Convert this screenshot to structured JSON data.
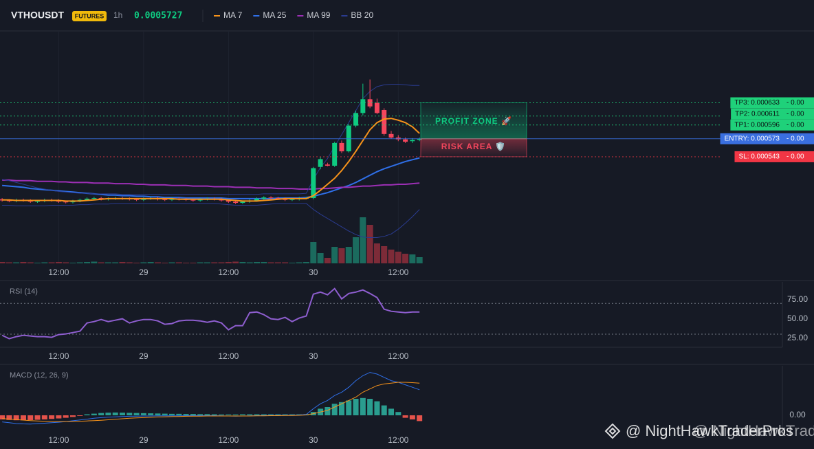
{
  "header": {
    "symbol": "VTHOUSDT",
    "badge": "FUTURES",
    "interval": "1h",
    "price": "0.0005727"
  },
  "watermark": "@ NightHawkTraderPros",
  "chart_data": [
    {
      "type": "candlestick",
      "xlim": [
        -0.3,
        110.3
      ],
      "xticks": [
        {
          "value": 8,
          "label": "12:00"
        },
        {
          "value": 20,
          "label": "29"
        },
        {
          "value": 32,
          "label": "12:00"
        },
        {
          "value": 44,
          "label": "30"
        },
        {
          "value": 56,
          "label": "12:00"
        }
      ],
      "ylim": [
        0.000365,
        0.000753
      ],
      "grid": true,
      "up_color": "#0ecb81",
      "down_color": "#f6465d",
      "volume_up_color": "#1b6b5e",
      "volume_down_color": "#7d2b38",
      "open": [
        0.000472,
        0.00047,
        0.000469,
        0.000471,
        0.00047,
        0.000468,
        0.000469,
        0.000471,
        0.00047,
        0.000468,
        0.000467,
        0.000469,
        0.000471,
        0.000473,
        0.000474,
        0.000472,
        0.000473,
        0.000474,
        0.000473,
        0.000472,
        0.000471,
        0.000473,
        0.000474,
        0.000472,
        0.000471,
        0.000473,
        0.000472,
        0.000471,
        0.00047,
        0.000472,
        0.000473,
        0.000472,
        0.00047,
        0.000468,
        0.000466,
        0.000468,
        0.00047,
        0.000473,
        0.000475,
        0.000474,
        0.000473,
        0.000471,
        0.000472,
        0.000474,
        0.000474,
        0.000526,
        0.00053,
        0.000528,
        0.000566,
        0.000552,
        0.000595,
        0.000616,
        0.000639,
        0.000633,
        0.000621,
        0.000581,
        0.000575,
        0.000572,
        0.000569,
        0.000571
      ],
      "high": [
        0.000474,
        0.000472,
        0.000473,
        0.000473,
        0.000472,
        0.000471,
        0.000473,
        0.000473,
        0.000472,
        0.00047,
        0.000471,
        0.000473,
        0.000475,
        0.000476,
        0.000476,
        0.000475,
        0.000476,
        0.000476,
        0.000475,
        0.000474,
        0.000475,
        0.000476,
        0.000476,
        0.000474,
        0.000475,
        0.000475,
        0.000474,
        0.000473,
        0.000474,
        0.000475,
        0.000475,
        0.000474,
        0.000472,
        0.00047,
        0.00047,
        0.000472,
        0.000475,
        0.000477,
        0.000477,
        0.000476,
        0.000475,
        0.000474,
        0.000476,
        0.000476,
        0.000526,
        0.000543,
        0.000533,
        0.000568,
        0.00057,
        0.000597,
        0.00062,
        0.000665,
        0.000672,
        0.00064,
        0.000624,
        0.000586,
        0.000579,
        0.000575,
        0.000574,
        0.000575
      ],
      "low": [
        0.000468,
        0.000467,
        0.000467,
        0.000468,
        0.000466,
        0.000466,
        0.000467,
        0.000468,
        0.000466,
        0.000465,
        0.000465,
        0.000467,
        0.000469,
        0.000471,
        0.00047,
        0.00047,
        0.000471,
        0.000471,
        0.00047,
        0.000469,
        0.000469,
        0.000471,
        0.00047,
        0.000469,
        0.000469,
        0.00047,
        0.000469,
        0.000468,
        0.000468,
        0.00047,
        0.00047,
        0.000468,
        0.000466,
        0.000464,
        0.000464,
        0.000466,
        0.000468,
        0.000471,
        0.000472,
        0.000471,
        0.000469,
        0.000469,
        0.00047,
        0.000472,
        0.000472,
        0.000522,
        0.000527,
        0.000526,
        0.000549,
        0.00055,
        0.000592,
        0.000612,
        0.000624,
        0.000614,
        0.000578,
        0.000573,
        0.000569,
        0.000566,
        0.000566,
        0.000569
      ],
      "close": [
        0.00047,
        0.000469,
        0.000471,
        0.00047,
        0.000468,
        0.000469,
        0.000471,
        0.00047,
        0.000468,
        0.000467,
        0.000469,
        0.000471,
        0.000473,
        0.000474,
        0.000472,
        0.000473,
        0.000474,
        0.000473,
        0.000472,
        0.000471,
        0.000473,
        0.000474,
        0.000472,
        0.000471,
        0.000473,
        0.000472,
        0.000471,
        0.00047,
        0.000472,
        0.000473,
        0.000472,
        0.00047,
        0.000468,
        0.000466,
        0.000468,
        0.00047,
        0.000473,
        0.000475,
        0.000474,
        0.000473,
        0.000471,
        0.000472,
        0.000474,
        0.000474,
        0.000524,
        0.000539,
        0.000528,
        0.000566,
        0.000552,
        0.000595,
        0.000616,
        0.000639,
        0.000627,
        0.000616,
        0.000581,
        0.000575,
        0.000572,
        0.000568,
        0.000571,
        0.000573
      ],
      "vlim": [
        0,
        100
      ],
      "volume": [
        2,
        1.5,
        1.5,
        2,
        1.5,
        1,
        1.5,
        1.5,
        2,
        1.5,
        1,
        1.5,
        2,
        2.5,
        1.5,
        1.5,
        1.5,
        2,
        1.5,
        1,
        1.5,
        2,
        1.5,
        1,
        1.5,
        1.5,
        1,
        1,
        1.5,
        1.5,
        1.5,
        1.5,
        2,
        2.5,
        2,
        1.5,
        2,
        2,
        1.5,
        1.5,
        1.5,
        1,
        1.5,
        2,
        31,
        15,
        8,
        24,
        22,
        24,
        38,
        67,
        56,
        29,
        25,
        20,
        17,
        14,
        13,
        9
      ],
      "series": [
        {
          "name": "MA 7",
          "color": "#f7931a",
          "values": [
            0.000471,
            0.000471,
            0.00047,
            0.00047,
            0.00047,
            0.00047,
            0.00047,
            0.00047,
            0.00047,
            0.000469,
            0.000469,
            0.000469,
            0.00047,
            0.000471,
            0.000472,
            0.000473,
            0.000473,
            0.000473,
            0.000473,
            0.000473,
            0.000473,
            0.000473,
            0.000473,
            0.000473,
            0.000473,
            0.000472,
            0.000472,
            0.000472,
            0.000472,
            0.000472,
            0.000472,
            0.000472,
            0.000471,
            0.00047,
            0.000469,
            0.000469,
            0.000469,
            0.00047,
            0.000471,
            0.000472,
            0.000473,
            0.000473,
            0.000473,
            0.000473,
            0.000478,
            0.000487,
            0.000497,
            0.000507,
            0.00052,
            0.000535,
            0.000552,
            0.00057,
            0.000588,
            0.0006,
            0.000606,
            0.000607,
            0.000604,
            0.0006,
            0.000593,
            0.000582
          ]
        },
        {
          "name": "MA 25",
          "color": "#2f6fe8",
          "values": [
            0.000495,
            0.000494,
            0.000493,
            0.000492,
            0.00049,
            0.000489,
            0.000488,
            0.000487,
            0.000486,
            0.000485,
            0.000484,
            0.000483,
            0.000482,
            0.000481,
            0.00048,
            0.000479,
            0.000479,
            0.000478,
            0.000478,
            0.000477,
            0.000477,
            0.000476,
            0.000476,
            0.000475,
            0.000475,
            0.000475,
            0.000474,
            0.000474,
            0.000474,
            0.000474,
            0.000474,
            0.000474,
            0.000473,
            0.000473,
            0.000473,
            0.000473,
            0.000473,
            0.000473,
            0.000473,
            0.000474,
            0.000474,
            0.000474,
            0.000474,
            0.000475,
            0.000477,
            0.00048,
            0.000483,
            0.000487,
            0.000491,
            0.000495,
            0.0005,
            0.000506,
            0.000512,
            0.000518,
            0.000523,
            0.000527,
            0.000531,
            0.000535,
            0.000538,
            0.000541
          ]
        },
        {
          "name": "MA 99",
          "color": "#9c2fb5",
          "values": [
            0.000504,
            0.000504,
            0.000503,
            0.000503,
            0.000503,
            0.000502,
            0.000502,
            0.000502,
            0.000501,
            0.000501,
            0.0005,
            0.0005,
            0.0005,
            0.000499,
            0.000499,
            0.000499,
            0.000498,
            0.000498,
            0.000498,
            0.000497,
            0.000497,
            0.000496,
            0.000496,
            0.000496,
            0.000495,
            0.000495,
            0.000495,
            0.000494,
            0.000494,
            0.000494,
            0.000493,
            0.000493,
            0.000493,
            0.000492,
            0.000492,
            0.000492,
            0.000491,
            0.000491,
            0.000491,
            0.00049,
            0.00049,
            0.00049,
            0.000489,
            0.000489,
            0.000489,
            0.00049,
            0.00049,
            0.000491,
            0.000492,
            0.000492,
            0.000493,
            0.000494,
            0.000494,
            0.000495,
            0.000496,
            0.000496,
            0.000497,
            0.000497,
            0.000498,
            0.000499
          ]
        },
        {
          "name": "BB 20",
          "color": "#2a3b8f",
          "upper": [
            0.000505,
            0.000503,
            0.0005,
            0.000497,
            0.000494,
            0.000491,
            0.000489,
            0.000487,
            0.000485,
            0.000484,
            0.000483,
            0.000482,
            0.000482,
            0.000481,
            0.000481,
            0.000481,
            0.000481,
            0.00048,
            0.00048,
            0.00048,
            0.00048,
            0.00048,
            0.00048,
            0.00048,
            0.00048,
            0.00048,
            0.00048,
            0.00048,
            0.00048,
            0.00048,
            0.00048,
            0.00048,
            0.00048,
            0.00048,
            0.00048,
            0.00048,
            0.00048,
            0.000481,
            0.000481,
            0.000481,
            0.000481,
            0.000481,
            0.000481,
            0.000482,
            0.000505,
            0.000525,
            0.00054,
            0.00056,
            0.00058,
            0.0006,
            0.00062,
            0.00064,
            0.000652,
            0.00066,
            0.000663,
            0.000664,
            0.000664,
            0.000663,
            0.000662,
            0.000662
          ],
          "lower": [
            0.000462,
            0.000462,
            0.000461,
            0.000461,
            0.000461,
            0.000461,
            0.000461,
            0.000462,
            0.000462,
            0.000462,
            0.000462,
            0.000463,
            0.000463,
            0.000464,
            0.000464,
            0.000464,
            0.000465,
            0.000465,
            0.000465,
            0.000465,
            0.000465,
            0.000465,
            0.000465,
            0.000465,
            0.000465,
            0.000465,
            0.000465,
            0.000465,
            0.000465,
            0.000465,
            0.000465,
            0.000464,
            0.000463,
            0.000462,
            0.000462,
            0.000462,
            0.000462,
            0.000463,
            0.000464,
            0.000465,
            0.000465,
            0.000465,
            0.000465,
            0.000465,
            0.000455,
            0.000447,
            0.00044,
            0.000433,
            0.000426,
            0.000419,
            0.000413,
            0.000409,
            0.000408,
            0.000408,
            0.00041,
            0.000414,
            0.000422,
            0.000432,
            0.000443,
            0.000455
          ]
        }
      ],
      "levels": [
        {
          "label": "TP3: 0.000633",
          "value": 0.000633,
          "pnl": "- 0.00",
          "color": "#1fd17a",
          "text_color": "#0b0e11",
          "style": "dotted"
        },
        {
          "label": "TP2: 0.000611",
          "value": 0.000611,
          "pnl": "- 0.00",
          "color": "#1fd17a",
          "text_color": "#0b0e11",
          "style": "dotted"
        },
        {
          "label": "TP1: 0.000596",
          "value": 0.000596,
          "pnl": "- 0.00",
          "color": "#1fd17a",
          "text_color": "#0b0e11",
          "style": "dotted"
        },
        {
          "label": "ENTRY: 0.000573",
          "value": 0.000573,
          "pnl": "- 0.00",
          "color": "#3a6fe0",
          "text_color": "#ffffff",
          "style": "solid"
        },
        {
          "label": "SL: 0.000543",
          "value": 0.000543,
          "pnl": "- 0.00",
          "color": "#f23645",
          "text_color": "#ffffff",
          "style": "dotted"
        }
      ],
      "zones": [
        {
          "label": "PROFIT ZONE 🚀",
          "from": 0.000573,
          "to": 0.000633,
          "color": "#0ecb81"
        },
        {
          "label": "RISK AREA 🛡️",
          "from": 0.000573,
          "to": 0.000543,
          "color": "#f6465d"
        }
      ]
    },
    {
      "type": "line",
      "title": "RSI (14)",
      "color": "#8e5ecf",
      "xlim": [
        -0.3,
        110.3
      ],
      "xticks": [
        {
          "value": 8,
          "label": "12:00"
        },
        {
          "value": 20,
          "label": "29"
        },
        {
          "value": 32,
          "label": "12:00"
        },
        {
          "value": 44,
          "label": "30"
        },
        {
          "value": 56,
          "label": "12:00"
        }
      ],
      "ylim": [
        13,
        98
      ],
      "yticks": [
        {
          "value": 25,
          "label": "25.00"
        },
        {
          "value": 50,
          "label": "50.00"
        },
        {
          "value": 75,
          "label": "75.00"
        }
      ],
      "guides": [
        30,
        70
      ],
      "values": [
        28.6,
        24.1,
        26.8,
        28.6,
        27.7,
        26.8,
        26.8,
        25.9,
        29.5,
        30.4,
        32.1,
        33.9,
        44.6,
        46.4,
        49.1,
        46.4,
        48.2,
        50,
        44.6,
        47.3,
        49.1,
        49.1,
        47.3,
        42.9,
        43.8,
        47.3,
        48.2,
        48.2,
        47.3,
        45.5,
        47.3,
        44.6,
        35.7,
        41.1,
        41.1,
        58,
        58.9,
        55.4,
        50,
        49.1,
        51.8,
        46.4,
        50.9,
        53.6,
        82.1,
        84.8,
        81.3,
        89.3,
        75.9,
        83,
        84.8,
        87.5,
        83,
        77.7,
        62.5,
        59.8,
        58.9,
        58,
        58.9,
        58.9
      ]
    },
    {
      "type": "macd",
      "title": "MACD (12, 26, 9)",
      "xlim": [
        -0.3,
        110.3
      ],
      "xticks": [
        {
          "value": 8,
          "label": "12:00"
        },
        {
          "value": 20,
          "label": "29"
        },
        {
          "value": 32,
          "label": "12:00"
        },
        {
          "value": 44,
          "label": "30"
        },
        {
          "value": 56,
          "label": "12:00"
        }
      ],
      "ylim": [
        -1e-05,
        3e-05
      ],
      "yticks": [
        {
          "value": 0,
          "label": "0.00"
        }
      ],
      "macd_color": "#2f6fe8",
      "signal_color": "#f7931a",
      "hist_up_color": "#2a9d8f",
      "hist_down_color": "#e5534b",
      "macd": [
        -4e-06,
        -4.5e-06,
        -5e-06,
        -5.2e-06,
        -5.3e-06,
        -5e-06,
        -4.8e-06,
        -4.5e-06,
        -4.2e-06,
        -3.8e-06,
        -3.3e-06,
        -2.8e-06,
        -2.3e-06,
        -1.8e-06,
        -1.4e-06,
        -1.1e-06,
        -9e-07,
        -7e-07,
        -6e-07,
        -5e-07,
        -4e-07,
        -4e-07,
        -3e-07,
        -3e-07,
        -3e-07,
        -3e-07,
        -2e-07,
        -2e-07,
        -2e-07,
        -2e-07,
        -2e-07,
        -3e-07,
        -4e-07,
        -5e-07,
        -4e-07,
        -3e-07,
        -2e-07,
        -1e-07,
        0,
        0,
        1e-07,
        1e-07,
        2e-07,
        5e-07,
        4e-06,
        7e-06,
        9e-06,
        1.2e-05,
        1.4e-05,
        1.7e-05,
        2.1e-05,
        2.4e-05,
        2.6e-05,
        2.5e-05,
        2.3e-05,
        2.1e-05,
        2e-05,
        1.85e-05,
        1.7e-05,
        1.55e-05
      ],
      "signal": [
        -2e-06,
        -2.3e-06,
        -2.6e-06,
        -2.9e-06,
        -3.2e-06,
        -3.4e-06,
        -3.6e-06,
        -3.7e-06,
        -3.8e-06,
        -3.8e-06,
        -3.7e-06,
        -3.6e-06,
        -3.4e-06,
        -3.2e-06,
        -3e-06,
        -2.7e-06,
        -2.4e-06,
        -2.1e-06,
        -1.8e-06,
        -1.6e-06,
        -1.4e-06,
        -1.2e-06,
        -1e-06,
        -9e-07,
        -8e-07,
        -7e-07,
        -6e-07,
        -5e-07,
        -5e-07,
        -4e-07,
        -4e-07,
        -4e-07,
        -4e-07,
        -4e-07,
        -4e-07,
        -4e-07,
        -3e-07,
        -3e-07,
        -2e-07,
        -2e-07,
        -1e-07,
        -1e-07,
        0,
        2e-07,
        1e-06,
        2e-06,
        3e-06,
        5e-06,
        7e-06,
        9e-06,
        1.1e-05,
        1.4e-05,
        1.6e-05,
        1.8e-05,
        1.9e-05,
        1.95e-05,
        2e-05,
        2e-05,
        1.98e-05,
        1.95e-05
      ],
      "histogram": [
        -2.5e-06,
        -2.8e-06,
        -3e-06,
        -3e-06,
        -2.9e-06,
        -2.7e-06,
        -2.5e-06,
        -2.2e-06,
        -1.9e-06,
        -1.5e-06,
        -1e-06,
        -4e-07,
        6e-07,
        1e-06,
        1.4e-06,
        1.6e-06,
        1.7e-06,
        1.6e-06,
        1.5e-06,
        1.4e-06,
        1.3e-06,
        1.2e-06,
        1.1e-06,
        1e-06,
        9e-07,
        9e-07,
        8e-07,
        8e-07,
        7e-07,
        7e-07,
        6e-07,
        5e-07,
        5e-07,
        5e-07,
        6e-07,
        6e-07,
        6e-07,
        6e-07,
        6e-07,
        6e-07,
        6e-07,
        6e-07,
        6e-07,
        7e-07,
        2e-06,
        4e-06,
        5e-06,
        7e-06,
        8e-06,
        9e-06,
        1e-05,
        1.05e-05,
        1e-05,
        8.5e-06,
        6e-06,
        4e-06,
        2e-06,
        -1.5e-06,
        -2.5e-06,
        -3.5e-06
      ]
    }
  ]
}
